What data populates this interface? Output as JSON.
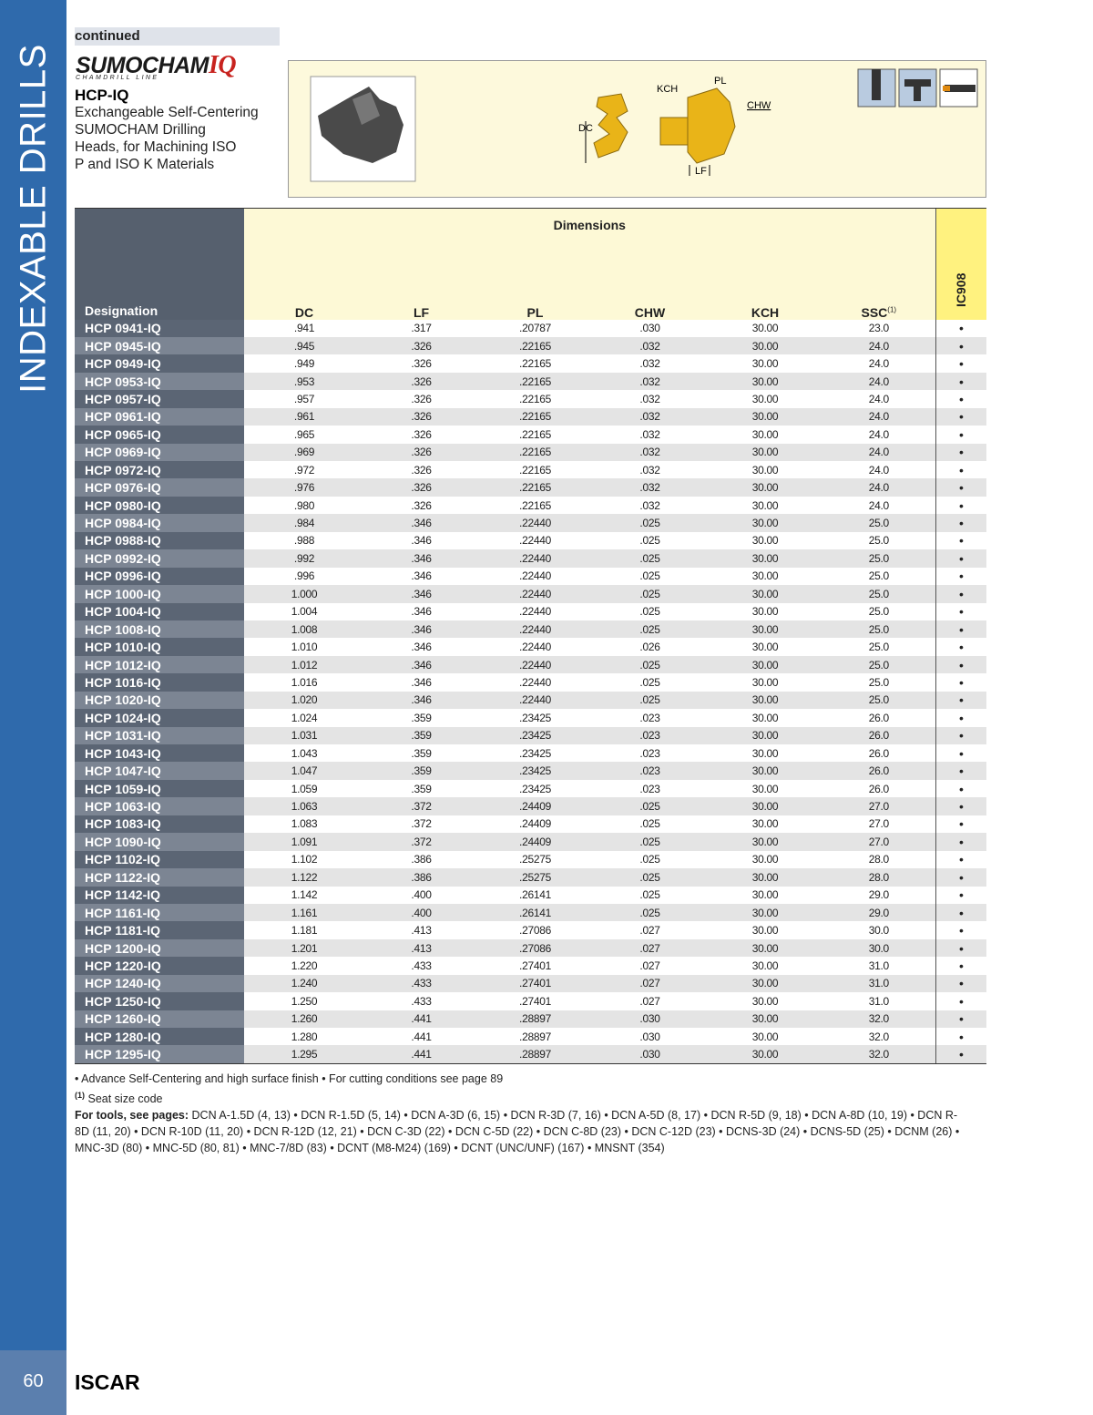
{
  "sidebar": {
    "section": "INDEXABLE DRILLS",
    "page_number": "60"
  },
  "header": {
    "continued": "continued",
    "logo": "SUMOCHAM",
    "logo_iq": "IQ",
    "logo_sub": "CHAMDRILL LINE",
    "product": "HCP-IQ",
    "description": [
      "Exchangeable Self-Centering",
      "SUMOCHAM Drilling",
      "Heads, for Machining ISO",
      "P and ISO K Materials"
    ]
  },
  "diagram": {
    "kch": "KCH",
    "pl": "PL",
    "chw": "CHW",
    "dc": "DC",
    "lf": "LF"
  },
  "table": {
    "group_header": "Dimensions",
    "columns": [
      "Designation",
      "DC",
      "LF",
      "PL",
      "CHW",
      "KCH",
      "SSC",
      "IC908"
    ],
    "ssc_note": "(1)",
    "rows": [
      [
        "HCP 0941-IQ",
        ".941",
        ".317",
        ".20787",
        ".030",
        "30.00",
        "23.0",
        "•"
      ],
      [
        "HCP 0945-IQ",
        ".945",
        ".326",
        ".22165",
        ".032",
        "30.00",
        "24.0",
        "•"
      ],
      [
        "HCP 0949-IQ",
        ".949",
        ".326",
        ".22165",
        ".032",
        "30.00",
        "24.0",
        "•"
      ],
      [
        "HCP 0953-IQ",
        ".953",
        ".326",
        ".22165",
        ".032",
        "30.00",
        "24.0",
        "•"
      ],
      [
        "HCP 0957-IQ",
        ".957",
        ".326",
        ".22165",
        ".032",
        "30.00",
        "24.0",
        "•"
      ],
      [
        "HCP 0961-IQ",
        ".961",
        ".326",
        ".22165",
        ".032",
        "30.00",
        "24.0",
        "•"
      ],
      [
        "HCP 0965-IQ",
        ".965",
        ".326",
        ".22165",
        ".032",
        "30.00",
        "24.0",
        "•"
      ],
      [
        "HCP 0969-IQ",
        ".969",
        ".326",
        ".22165",
        ".032",
        "30.00",
        "24.0",
        "•"
      ],
      [
        "HCP 0972-IQ",
        ".972",
        ".326",
        ".22165",
        ".032",
        "30.00",
        "24.0",
        "•"
      ],
      [
        "HCP 0976-IQ",
        ".976",
        ".326",
        ".22165",
        ".032",
        "30.00",
        "24.0",
        "•"
      ],
      [
        "HCP 0980-IQ",
        ".980",
        ".326",
        ".22165",
        ".032",
        "30.00",
        "24.0",
        "•"
      ],
      [
        "HCP 0984-IQ",
        ".984",
        ".346",
        ".22440",
        ".025",
        "30.00",
        "25.0",
        "•"
      ],
      [
        "HCP 0988-IQ",
        ".988",
        ".346",
        ".22440",
        ".025",
        "30.00",
        "25.0",
        "•"
      ],
      [
        "HCP 0992-IQ",
        ".992",
        ".346",
        ".22440",
        ".025",
        "30.00",
        "25.0",
        "•"
      ],
      [
        "HCP 0996-IQ",
        ".996",
        ".346",
        ".22440",
        ".025",
        "30.00",
        "25.0",
        "•"
      ],
      [
        "HCP 1000-IQ",
        "1.000",
        ".346",
        ".22440",
        ".025",
        "30.00",
        "25.0",
        "•"
      ],
      [
        "HCP 1004-IQ",
        "1.004",
        ".346",
        ".22440",
        ".025",
        "30.00",
        "25.0",
        "•"
      ],
      [
        "HCP 1008-IQ",
        "1.008",
        ".346",
        ".22440",
        ".025",
        "30.00",
        "25.0",
        "•"
      ],
      [
        "HCP 1010-IQ",
        "1.010",
        ".346",
        ".22440",
        ".026",
        "30.00",
        "25.0",
        "•"
      ],
      [
        "HCP 1012-IQ",
        "1.012",
        ".346",
        ".22440",
        ".025",
        "30.00",
        "25.0",
        "•"
      ],
      [
        "HCP 1016-IQ",
        "1.016",
        ".346",
        ".22440",
        ".025",
        "30.00",
        "25.0",
        "•"
      ],
      [
        "HCP 1020-IQ",
        "1.020",
        ".346",
        ".22440",
        ".025",
        "30.00",
        "25.0",
        "•"
      ],
      [
        "HCP 1024-IQ",
        "1.024",
        ".359",
        ".23425",
        ".023",
        "30.00",
        "26.0",
        "•"
      ],
      [
        "HCP 1031-IQ",
        "1.031",
        ".359",
        ".23425",
        ".023",
        "30.00",
        "26.0",
        "•"
      ],
      [
        "HCP 1043-IQ",
        "1.043",
        ".359",
        ".23425",
        ".023",
        "30.00",
        "26.0",
        "•"
      ],
      [
        "HCP 1047-IQ",
        "1.047",
        ".359",
        ".23425",
        ".023",
        "30.00",
        "26.0",
        "•"
      ],
      [
        "HCP 1059-IQ",
        "1.059",
        ".359",
        ".23425",
        ".023",
        "30.00",
        "26.0",
        "•"
      ],
      [
        "HCP 1063-IQ",
        "1.063",
        ".372",
        ".24409",
        ".025",
        "30.00",
        "27.0",
        "•"
      ],
      [
        "HCP 1083-IQ",
        "1.083",
        ".372",
        ".24409",
        ".025",
        "30.00",
        "27.0",
        "•"
      ],
      [
        "HCP 1090-IQ",
        "1.091",
        ".372",
        ".24409",
        ".025",
        "30.00",
        "27.0",
        "•"
      ],
      [
        "HCP 1102-IQ",
        "1.102",
        ".386",
        ".25275",
        ".025",
        "30.00",
        "28.0",
        "•"
      ],
      [
        "HCP 1122-IQ",
        "1.122",
        ".386",
        ".25275",
        ".025",
        "30.00",
        "28.0",
        "•"
      ],
      [
        "HCP 1142-IQ",
        "1.142",
        ".400",
        ".26141",
        ".025",
        "30.00",
        "29.0",
        "•"
      ],
      [
        "HCP 1161-IQ",
        "1.161",
        ".400",
        ".26141",
        ".025",
        "30.00",
        "29.0",
        "•"
      ],
      [
        "HCP 1181-IQ",
        "1.181",
        ".413",
        ".27086",
        ".027",
        "30.00",
        "30.0",
        "•"
      ],
      [
        "HCP 1200-IQ",
        "1.201",
        ".413",
        ".27086",
        ".027",
        "30.00",
        "30.0",
        "•"
      ],
      [
        "HCP 1220-IQ",
        "1.220",
        ".433",
        ".27401",
        ".027",
        "30.00",
        "31.0",
        "•"
      ],
      [
        "HCP 1240-IQ",
        "1.240",
        ".433",
        ".27401",
        ".027",
        "30.00",
        "31.0",
        "•"
      ],
      [
        "HCP 1250-IQ",
        "1.250",
        ".433",
        ".27401",
        ".027",
        "30.00",
        "31.0",
        "•"
      ],
      [
        "HCP 1260-IQ",
        "1.260",
        ".441",
        ".28897",
        ".030",
        "30.00",
        "32.0",
        "•"
      ],
      [
        "HCP 1280-IQ",
        "1.280",
        ".441",
        ".28897",
        ".030",
        "30.00",
        "32.0",
        "•"
      ],
      [
        "HCP 1295-IQ",
        "1.295",
        ".441",
        ".28897",
        ".030",
        "30.00",
        "32.0",
        "•"
      ]
    ]
  },
  "footer": {
    "notes": "•  Advance Self-Centering and high surface finish   •  For cutting conditions see page 89",
    "footnote_mark": "(1)",
    "footnote": "Seat size code",
    "tools_label": "For tools, see pages:",
    "tools": "DCN A-1.5D (4, 13) • DCN R-1.5D (5, 14) • DCN A-3D (6, 15) • DCN R-3D (7, 16) • DCN A-5D (8, 17) • DCN R-5D (9, 18) • DCN A-8D (10, 19) • DCN R-8D (11, 20) • DCN R-10D (11, 20) • DCN R-12D (12, 21) • DCN C-3D (22) • DCN C-5D (22) • DCN C-8D (23) • DCN C-12D (23) • DCNS-3D (24) • DCNS-5D (25) • DCNM (26) • MNC-3D (80) • MNC-5D (80, 81) • MNC-7/8D (83) • DCNT (M8-M24) (169) • DCNT (UNC/UNF) (167) • MNSNT (354)"
  },
  "brand": "ISCAR"
}
